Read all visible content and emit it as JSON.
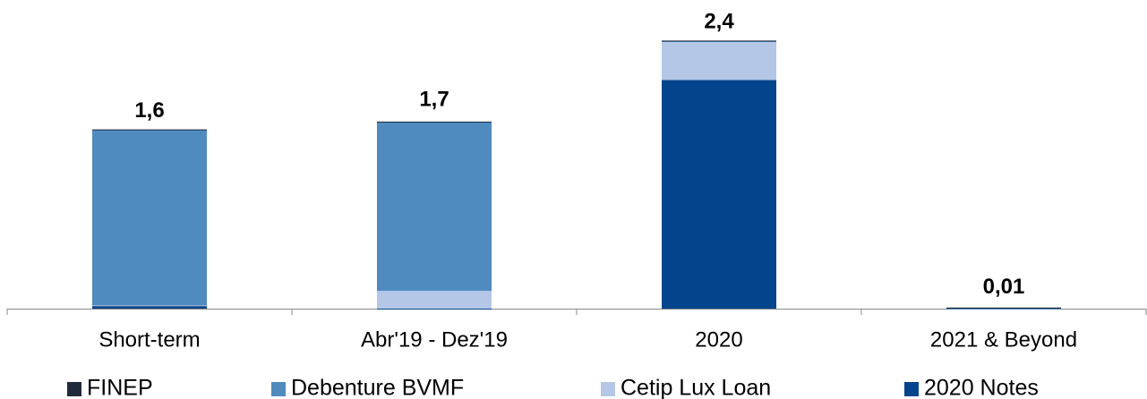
{
  "chart_data": {
    "type": "stacked_bar",
    "categories": [
      "Short-term",
      "Abr'19 - Dez'19",
      "2020",
      "2021 & Beyond"
    ],
    "series": [
      {
        "name": "FINEP",
        "color": "#1f2a3a",
        "values": [
          0.005,
          0.005,
          0.005,
          0.01
        ]
      },
      {
        "name": "Debenture BVMF",
        "color": "#4f8bbf",
        "values": [
          1.58,
          1.52,
          0,
          0
        ]
      },
      {
        "name": "Cetip Lux Loan",
        "color": "#b4c7e7",
        "values": [
          0,
          0.16,
          0.35,
          0
        ]
      },
      {
        "name": "2020 Notes",
        "color": "#03458c",
        "values": [
          0.03,
          0,
          2.06,
          0
        ]
      }
    ],
    "totals": [
      1.6,
      1.7,
      2.4,
      0.01
    ],
    "total_labels": [
      "1,6",
      "1,7",
      "2,4",
      "0,01"
    ],
    "ylim": [
      0,
      2.7
    ]
  }
}
